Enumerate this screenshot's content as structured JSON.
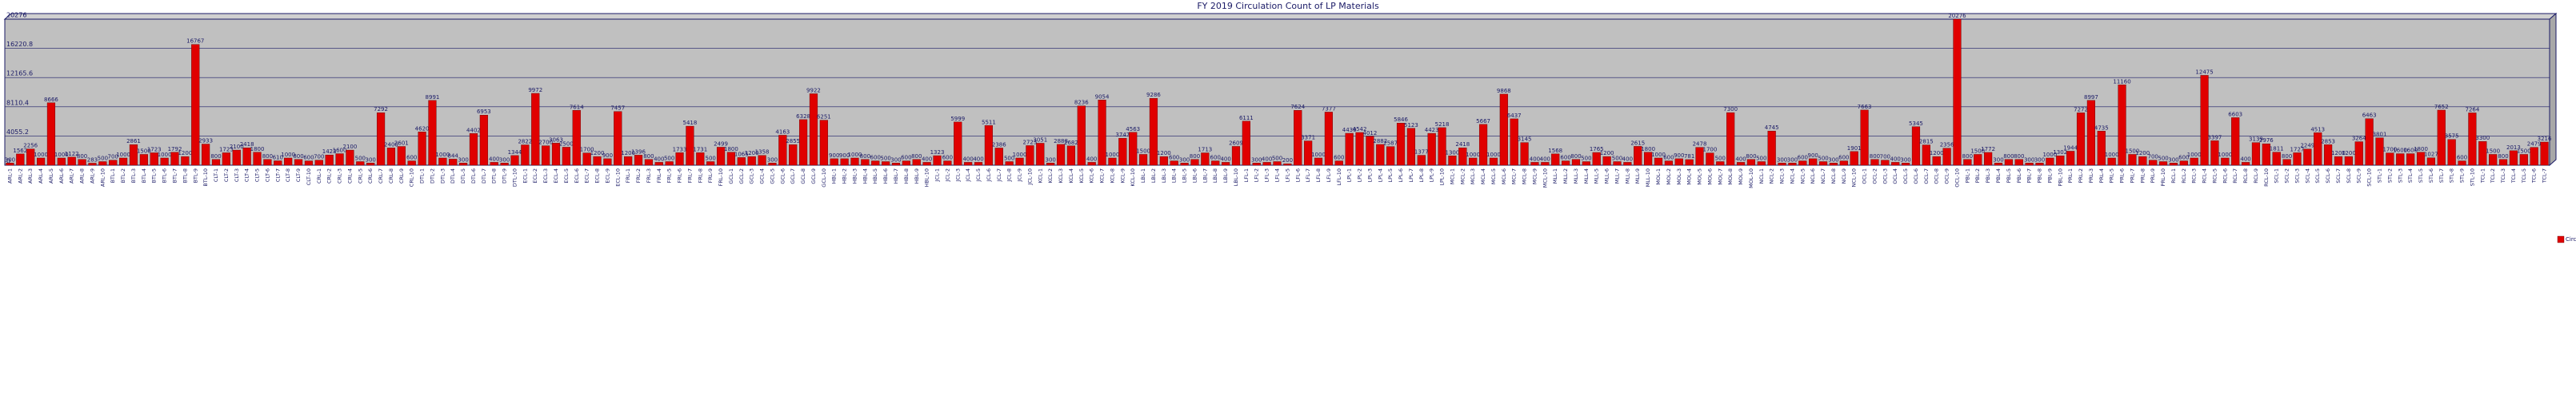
{
  "chart_data": {
    "type": "bar",
    "title": "FY 2019 Circulation Count of LP Materials",
    "categories": [
      "ARL-1",
      "ARL-2",
      "ARL-3",
      "ARL-4",
      "ARL-5",
      "ARL-6",
      "ARL-7",
      "ARL-8",
      "ARL-9",
      "ARL-10",
      "BTL-1",
      "BTL-2",
      "BTL-3",
      "BTL-4",
      "BTL-5",
      "BTL-6",
      "BTL-7",
      "BTL-8",
      "BTL-9",
      "BTL-10",
      "CLT-1",
      "CLT-2",
      "CLT-3",
      "CLT-4",
      "CLT-5",
      "CLT-6",
      "CLT-7",
      "CLT-8",
      "CLT-9",
      "CLT-10",
      "CRL-1",
      "CRL-2",
      "CRL-3",
      "CRL-4",
      "CRL-5",
      "CRL-6",
      "CRL-7",
      "CRL-8",
      "CRL-9",
      "CRL-10",
      "DTL-1",
      "DTL-2",
      "DTL-3",
      "DTL-4",
      "DTL-5",
      "DTL-6",
      "DTL-7",
      "DTL-8",
      "DTL-9",
      "DTL-10",
      "ECL-1",
      "ECL-2",
      "ECL-3",
      "ECL-4",
      "ECL-5",
      "ECL-6",
      "ECL-7",
      "ECL-8",
      "ECL-9",
      "ECL-10",
      "FRL-1",
      "FRL-2",
      "FRL-3",
      "FRL-4",
      "FRL-5",
      "FRL-6",
      "FRL-7",
      "FRL-8",
      "FRL-9",
      "FRL-10",
      "GCL-1",
      "GCL-2",
      "GCL-3",
      "GCL-4",
      "GCL-5",
      "GCL-6",
      "GCL-7",
      "GCL-8",
      "GCL-9",
      "GCL-10",
      "HBL-1",
      "HBL-2",
      "HBL-3",
      "HBL-4",
      "HBL-5",
      "HBL-6",
      "HBL-7",
      "HBL-8",
      "HBL-9",
      "HBL-10",
      "JCL-1",
      "JCL-2",
      "JCL-3",
      "JCL-4",
      "JCL-5",
      "JCL-6",
      "JCL-7",
      "JCL-8",
      "JCL-9",
      "JCL-10",
      "KCL-1",
      "KCL-2",
      "KCL-3",
      "KCL-4",
      "KCL-5",
      "KCL-6",
      "KCL-7",
      "KCL-8",
      "KCL-9",
      "KCL-10",
      "LBL-1",
      "LBL-2",
      "LBL-3",
      "LBL-4",
      "LBL-5",
      "LBL-6",
      "LBL-7",
      "LBL-8",
      "LBL-9",
      "LBL-10",
      "LFL-1",
      "LFL-2",
      "LFL-3",
      "LFL-4",
      "LFL-5",
      "LFL-6",
      "LFL-7",
      "LFL-8",
      "LFL-9",
      "LFL-10",
      "LPL-1",
      "LPL-2",
      "LPL-3",
      "LPL-4",
      "LPL-5",
      "LPL-6",
      "LPL-7",
      "LPL-8",
      "LPL-9",
      "LPL-10",
      "MCL-1",
      "MCL-2",
      "MCL-3",
      "MCL-4",
      "MCL-5",
      "MCL-6",
      "MCL-7",
      "MCL-8",
      "MCL-9",
      "MCL-10",
      "MLL-1",
      "MLL-2",
      "MLL-3",
      "MLL-4",
      "MLL-5",
      "MLL-6",
      "MLL-7",
      "MLL-8",
      "MLL-9",
      "MLL-10",
      "MOL-1",
      "MOL-2",
      "MOL-3",
      "MOL-4",
      "MOL-5",
      "MOL-6",
      "MOL-7",
      "MOL-8",
      "MOL-9",
      "MOL-10",
      "NCL-1",
      "NCL-2",
      "NCL-3",
      "NCL-4",
      "NCL-5",
      "NCL-6",
      "NCL-7",
      "NCL-8",
      "NCL-9",
      "NCL-10",
      "OCL-1",
      "OCL-2",
      "OCL-3",
      "OCL-4",
      "OCL-5",
      "OCL-6",
      "OCL-7",
      "OCL-8",
      "OCL-9",
      "OCL-10",
      "PBL-1",
      "PBL-2",
      "PBL-3",
      "PBL-4",
      "PBL-5",
      "PBL-6",
      "PBL-7",
      "PBL-8",
      "PBL-9",
      "PBL-10",
      "PRL-1",
      "PRL-2",
      "PRL-3",
      "PRL-4",
      "PRL-5",
      "PRL-6",
      "PRL-7",
      "PRL-8",
      "PRL-9",
      "PRL-10",
      "RCL-1",
      "RCL-2",
      "RCL-3",
      "RCL-4",
      "RCL-5",
      "RCL-6",
      "RCL-7",
      "RCL-8",
      "RCL-9",
      "RCL-10",
      "SCL-1",
      "SCL-2",
      "SCL-3",
      "SCL-4",
      "SCL-5",
      "SCL-6",
      "SCL-7",
      "SCL-8",
      "SCL-9",
      "SCL-10",
      "STL-1",
      "STL-2",
      "STL-3",
      "STL-4",
      "STL-5",
      "STL-6",
      "STL-7",
      "STL-8",
      "STL-9",
      "STL-10",
      "TCL-1",
      "TCL-2",
      "TCL-3",
      "TCL-4",
      "TCL-5",
      "TCL-6",
      "TCL-7"
    ],
    "series": [
      {
        "name": "Circ 19",
        "color": "#e00000",
        "values": [
          300,
          1562,
          2256,
          1000,
          8666,
          1000,
          1122,
          800,
          283,
          500,
          700,
          1000,
          2861,
          1500,
          1723,
          1000,
          1792,
          1200,
          16767,
          2933,
          800,
          1723,
          2100,
          2418,
          1800,
          800,
          610,
          1000,
          800,
          600,
          700,
          1423,
          1600,
          2100,
          500,
          300,
          7292,
          2400,
          2601,
          600,
          4620,
          8991,
          1000,
          844,
          300,
          4402,
          6953,
          400,
          300,
          1344,
          2822,
          9972,
          2700,
          3063,
          2500,
          7614,
          1700,
          1200,
          900,
          7457,
          1200,
          1396,
          800,
          400,
          500,
          1733,
          5418,
          1731,
          500,
          2499,
          1800,
          1065,
          1200,
          1358,
          300,
          4163,
          2855,
          6328,
          9922,
          6251,
          900,
          900,
          1000,
          800,
          600,
          500,
          300,
          600,
          800,
          400,
          1323,
          600,
          5999,
          400,
          400,
          5511,
          2386,
          500,
          1000,
          2723,
          3051,
          300,
          2888,
          2682,
          8236,
          400,
          9054,
          1000,
          3747,
          4563,
          1500,
          9286,
          1200,
          600,
          300,
          800,
          1713,
          600,
          400,
          2609,
          6111,
          300,
          400,
          500,
          200,
          7624,
          3371,
          1000,
          7377,
          600,
          4430,
          4542,
          4012,
          2882,
          2587,
          5846,
          5123,
          1377,
          4423,
          5218,
          1300,
          2418,
          1000,
          5667,
          1000,
          9868,
          6437,
          3145,
          400,
          400,
          1568,
          600,
          800,
          500,
          1765,
          1200,
          500,
          400,
          2615,
          1800,
          1000,
          600,
          900,
          781,
          2478,
          1700,
          500,
          7300,
          400,
          800,
          500,
          4745,
          300,
          300,
          600,
          900,
          500,
          300,
          600,
          1901,
          7663,
          800,
          700,
          400,
          300,
          5345,
          2815,
          1200,
          2356,
          20276,
          800,
          1500,
          1772,
          300,
          800,
          800,
          300,
          300,
          1000,
          1302,
          1944,
          7272,
          8997,
          4735,
          1000,
          11160,
          1500,
          1200,
          700,
          500,
          300,
          600,
          1000,
          12475,
          3397,
          1000,
          6603,
          400,
          3139,
          2976,
          1811,
          800,
          1727,
          2249,
          4513,
          2853,
          1200,
          1200,
          3264,
          6463,
          3801,
          1700,
          1600,
          1600,
          1800,
          1027,
          7652,
          3575,
          600,
          7264,
          3300,
          1500,
          800,
          2013,
          1500,
          2479,
          3216
        ]
      }
    ],
    "ylim": [
      0,
      20276
    ],
    "yticks": [
      0,
      4055.2,
      8110.4,
      12165.6,
      16220.8,
      20276
    ],
    "grid": true,
    "legend": "right"
  }
}
